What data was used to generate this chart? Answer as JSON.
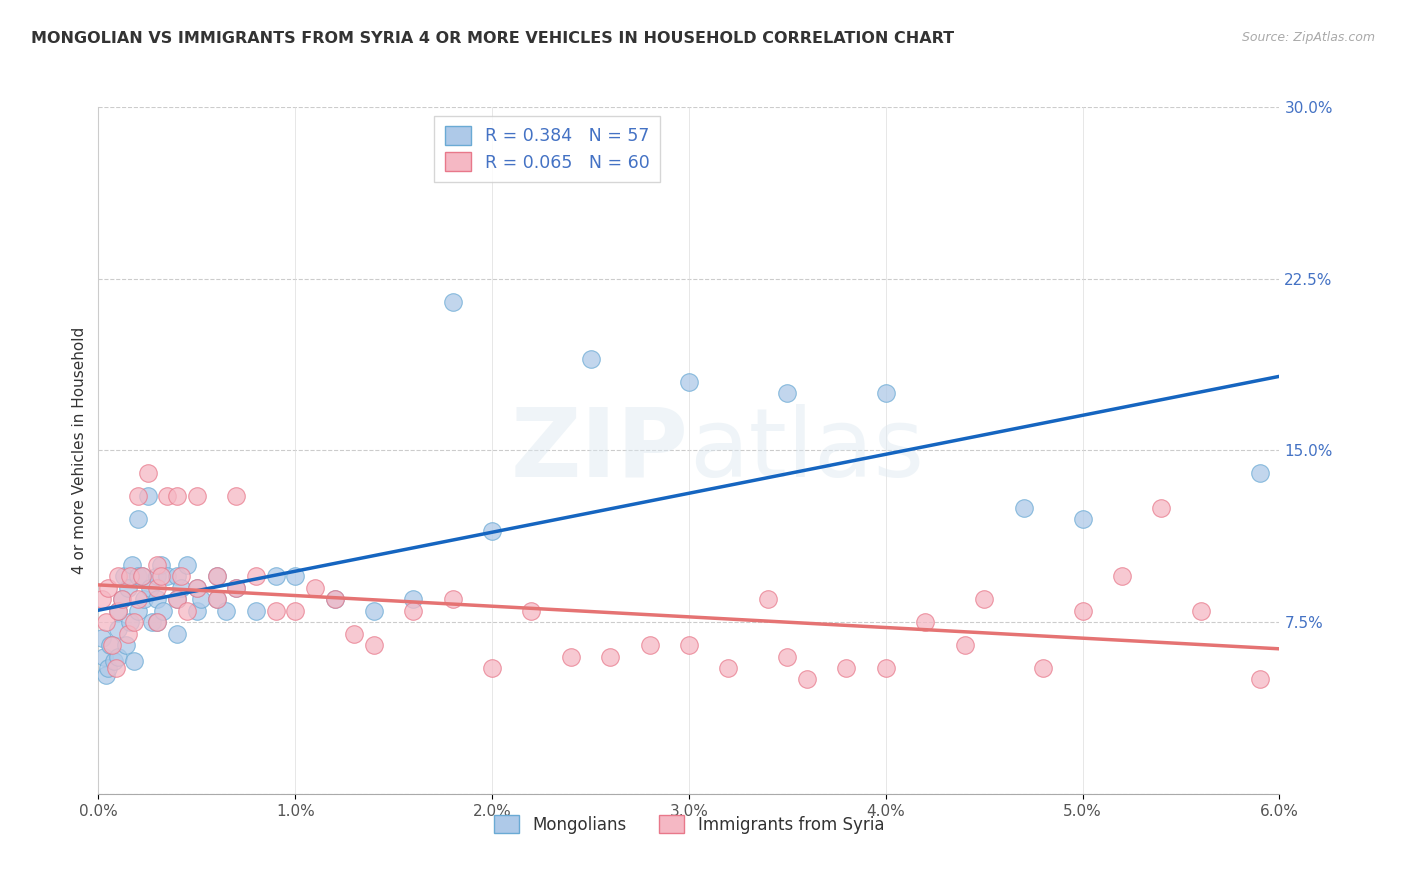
{
  "title": "MONGOLIAN VS IMMIGRANTS FROM SYRIA 4 OR MORE VEHICLES IN HOUSEHOLD CORRELATION CHART",
  "source": "Source: ZipAtlas.com",
  "ylabel": "4 or more Vehicles in Household",
  "xlim": [
    0.0,
    0.06
  ],
  "ylim": [
    0.0,
    0.3
  ],
  "xticks": [
    0.0,
    0.01,
    0.02,
    0.03,
    0.04,
    0.05,
    0.06
  ],
  "xticklabels": [
    "0.0%",
    "1.0%",
    "2.0%",
    "3.0%",
    "4.0%",
    "5.0%",
    "6.0%"
  ],
  "yticks_right": [
    0.0,
    0.075,
    0.15,
    0.225,
    0.3
  ],
  "ytick_labels_right": [
    "",
    "7.5%",
    "15.0%",
    "22.5%",
    "30.0%"
  ],
  "grid_color": "#cccccc",
  "background_color": "#ffffff",
  "mongolian_color": "#aec9e8",
  "mongolian_edge_color": "#6aaad4",
  "syria_color": "#f5b8c4",
  "syria_edge_color": "#e8788a",
  "legend_label_mongolian": "R = 0.384   N = 57",
  "legend_label_syria": "R = 0.065   N = 60",
  "bottom_legend_mongolians": "Mongolians",
  "bottom_legend_syria": "Immigrants from Syria",
  "trend_blue": "#1565c0",
  "trend_pink": "#e57373",
  "mongolian_x": [
    0.0002,
    0.0003,
    0.0004,
    0.0005,
    0.0006,
    0.0008,
    0.001,
    0.001,
    0.001,
    0.0012,
    0.0013,
    0.0014,
    0.0015,
    0.0016,
    0.0017,
    0.0018,
    0.002,
    0.002,
    0.002,
    0.0022,
    0.0023,
    0.0025,
    0.0026,
    0.0027,
    0.003,
    0.003,
    0.003,
    0.0032,
    0.0033,
    0.0035,
    0.004,
    0.004,
    0.004,
    0.0042,
    0.0045,
    0.005,
    0.005,
    0.0052,
    0.006,
    0.006,
    0.0065,
    0.007,
    0.008,
    0.009,
    0.01,
    0.012,
    0.014,
    0.016,
    0.018,
    0.02,
    0.025,
    0.03,
    0.035,
    0.04,
    0.047,
    0.05,
    0.059
  ],
  "mongolian_y": [
    0.068,
    0.06,
    0.052,
    0.055,
    0.065,
    0.058,
    0.072,
    0.08,
    0.06,
    0.085,
    0.095,
    0.065,
    0.09,
    0.075,
    0.1,
    0.058,
    0.095,
    0.12,
    0.08,
    0.095,
    0.085,
    0.13,
    0.09,
    0.075,
    0.095,
    0.085,
    0.075,
    0.1,
    0.08,
    0.095,
    0.095,
    0.085,
    0.07,
    0.09,
    0.1,
    0.09,
    0.08,
    0.085,
    0.095,
    0.085,
    0.08,
    0.09,
    0.08,
    0.095,
    0.095,
    0.085,
    0.08,
    0.085,
    0.215,
    0.115,
    0.19,
    0.18,
    0.175,
    0.175,
    0.125,
    0.12,
    0.14
  ],
  "syria_x": [
    0.0002,
    0.0004,
    0.0005,
    0.0007,
    0.0009,
    0.001,
    0.001,
    0.0012,
    0.0015,
    0.0016,
    0.0018,
    0.002,
    0.002,
    0.0022,
    0.0025,
    0.003,
    0.003,
    0.003,
    0.0032,
    0.0035,
    0.004,
    0.004,
    0.0042,
    0.0045,
    0.005,
    0.005,
    0.006,
    0.006,
    0.007,
    0.007,
    0.008,
    0.009,
    0.01,
    0.011,
    0.012,
    0.013,
    0.014,
    0.016,
    0.018,
    0.02,
    0.022,
    0.024,
    0.026,
    0.028,
    0.03,
    0.032,
    0.034,
    0.035,
    0.036,
    0.038,
    0.04,
    0.042,
    0.044,
    0.045,
    0.048,
    0.05,
    0.052,
    0.054,
    0.056,
    0.059
  ],
  "syria_y": [
    0.085,
    0.075,
    0.09,
    0.065,
    0.055,
    0.08,
    0.095,
    0.085,
    0.07,
    0.095,
    0.075,
    0.085,
    0.13,
    0.095,
    0.14,
    0.1,
    0.09,
    0.075,
    0.095,
    0.13,
    0.085,
    0.13,
    0.095,
    0.08,
    0.13,
    0.09,
    0.095,
    0.085,
    0.13,
    0.09,
    0.095,
    0.08,
    0.08,
    0.09,
    0.085,
    0.07,
    0.065,
    0.08,
    0.085,
    0.055,
    0.08,
    0.06,
    0.06,
    0.065,
    0.065,
    0.055,
    0.085,
    0.06,
    0.05,
    0.055,
    0.055,
    0.075,
    0.065,
    0.085,
    0.055,
    0.08,
    0.095,
    0.125,
    0.08,
    0.05
  ]
}
